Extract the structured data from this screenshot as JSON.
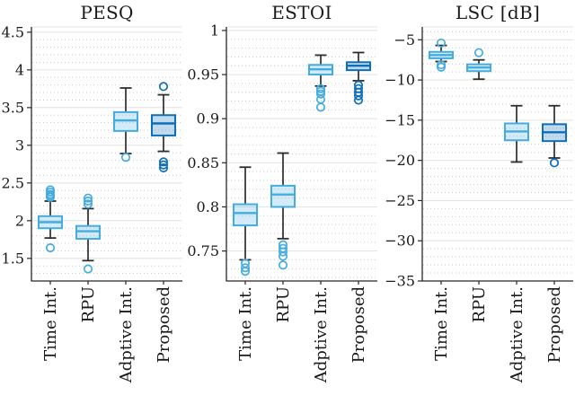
{
  "figure": {
    "background": "#ffffff",
    "categories": [
      "Time Int.",
      "RPU",
      "Adptive Int.",
      "Proposed"
    ]
  },
  "colors": {
    "box_light_stroke": "#45ACE0",
    "box_light_fill": "rgba(69,172,224,0.24)",
    "box_dark_stroke": "#0E6FB8",
    "box_dark_fill": "rgba(14,111,184,0.26)",
    "whisker": "#2d2d2d",
    "axis": "#262626",
    "grid_major": "#e4e4e4",
    "grid_minor": "#c9c9c9",
    "text": "#1b1b1b"
  },
  "chart_data": [
    {
      "type": "boxplot",
      "title": "PESQ",
      "categories": [
        "Time Int.",
        "RPU",
        "Adptive Int.",
        "Proposed"
      ],
      "ylim": [
        1.2,
        4.57
      ],
      "yticks": [
        1.5,
        2,
        2.5,
        3,
        3.5,
        4,
        4.5
      ],
      "ytick_labels": [
        "1.5",
        "2",
        "2.5",
        "3",
        "3.5",
        "4",
        "4.5"
      ],
      "minor_step": 0.1,
      "grid": true,
      "boxes": [
        {
          "category": "Time Int.",
          "style": "light",
          "q1": 1.9,
          "median": 1.98,
          "q3": 2.06,
          "whisker_low": 1.77,
          "whisker_high": 2.26,
          "outliers_high": [
            2.31,
            2.33,
            2.35,
            2.38,
            2.41
          ],
          "outliers_low": [
            1.64
          ]
        },
        {
          "category": "RPU",
          "style": "light",
          "q1": 1.76,
          "median": 1.86,
          "q3": 1.93,
          "whisker_low": 1.47,
          "whisker_high": 2.16,
          "outliers_high": [
            2.22,
            2.26,
            2.3
          ],
          "outliers_low": [
            1.36
          ]
        },
        {
          "category": "Adptive Int.",
          "style": "light",
          "q1": 3.19,
          "median": 3.33,
          "q3": 3.44,
          "whisker_low": 2.89,
          "whisker_high": 3.76,
          "outliers_high": [],
          "outliers_low": [
            2.84
          ]
        },
        {
          "category": "Proposed",
          "style": "dark",
          "q1": 3.13,
          "median": 3.29,
          "q3": 3.4,
          "whisker_low": 2.92,
          "whisker_high": 3.67,
          "outliers_high": [
            3.78
          ],
          "outliers_low": [
            2.78,
            2.74,
            2.7
          ]
        }
      ]
    },
    {
      "type": "boxplot",
      "title": "ESTOI",
      "categories": [
        "Time Int.",
        "RPU",
        "Adptive Int.",
        "Proposed"
      ],
      "ylim": [
        0.716,
        1.004
      ],
      "yticks": [
        0.75,
        0.8,
        0.85,
        0.9,
        0.95,
        1
      ],
      "ytick_labels": [
        "0.75",
        "0.8",
        "0.85",
        "0.9",
        "0.95",
        "1"
      ],
      "minor_step": 0.01,
      "grid": true,
      "boxes": [
        {
          "category": "Time Int.",
          "style": "light",
          "q1": 0.779,
          "median": 0.793,
          "q3": 0.803,
          "whisker_low": 0.74,
          "whisker_high": 0.845,
          "outliers_high": [],
          "outliers_low": [
            0.736,
            0.731,
            0.727
          ]
        },
        {
          "category": "RPU",
          "style": "light",
          "q1": 0.8,
          "median": 0.814,
          "q3": 0.824,
          "whisker_low": 0.764,
          "whisker_high": 0.861,
          "outliers_high": [],
          "outliers_low": [
            0.757,
            0.753,
            0.749,
            0.744,
            0.734
          ]
        },
        {
          "category": "Adptive Int.",
          "style": "light",
          "q1": 0.95,
          "median": 0.956,
          "q3": 0.961,
          "whisker_low": 0.937,
          "whisker_high": 0.972,
          "outliers_high": [],
          "outliers_low": [
            0.934,
            0.931,
            0.928,
            0.922,
            0.913
          ]
        },
        {
          "category": "Proposed",
          "style": "dark",
          "q1": 0.955,
          "median": 0.96,
          "q3": 0.964,
          "whisker_low": 0.943,
          "whisker_high": 0.975,
          "outliers_high": [],
          "outliers_low": [
            0.938,
            0.934,
            0.93,
            0.926,
            0.921
          ]
        }
      ]
    },
    {
      "type": "boxplot",
      "title": "LSC [dB]",
      "categories": [
        "Time Int.",
        "RPU",
        "Adptive Int.",
        "Proposed"
      ],
      "ylim": [
        -35,
        -3.4
      ],
      "yticks": [
        -35,
        -30,
        -25,
        -20,
        -15,
        -10,
        -5
      ],
      "ytick_labels": [
        "−35",
        "−30",
        "−25",
        "−20",
        "−15",
        "−10",
        "−5"
      ],
      "minor_step": 1,
      "grid": true,
      "boxes": [
        {
          "category": "Time Int.",
          "style": "light",
          "q1": -7.3,
          "median": -6.9,
          "q3": -6.5,
          "whisker_low": -7.7,
          "whisker_high": -5.7,
          "outliers_high": [
            -5.4
          ],
          "outliers_low": [
            -8.1,
            -8.4
          ]
        },
        {
          "category": "RPU",
          "style": "light",
          "q1": -8.9,
          "median": -8.45,
          "q3": -8.05,
          "whisker_low": -9.9,
          "whisker_high": -7.5,
          "outliers_high": [
            -6.6
          ],
          "outliers_low": []
        },
        {
          "category": "Adptive Int.",
          "style": "light",
          "q1": -17.5,
          "median": -16.4,
          "q3": -15.4,
          "whisker_low": -20.2,
          "whisker_high": -13.2,
          "outliers_high": [],
          "outliers_low": []
        },
        {
          "category": "Proposed",
          "style": "dark",
          "q1": -17.6,
          "median": -16.5,
          "q3": -15.5,
          "whisker_low": -19.7,
          "whisker_high": -13.2,
          "outliers_high": [],
          "outliers_low": [
            -20.3
          ]
        }
      ]
    }
  ]
}
